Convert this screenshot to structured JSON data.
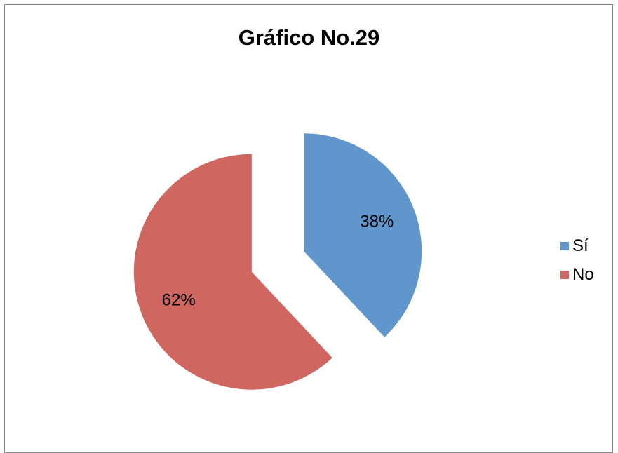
{
  "chart_data": {
    "type": "pie",
    "title": "Gráfico No.29",
    "categories": [
      "Sí",
      "No"
    ],
    "values": [
      38,
      62
    ],
    "data_labels": [
      "38%",
      "62%"
    ],
    "colors": [
      "#6096CB",
      "#CF6660"
    ],
    "exploded": true,
    "legend_position": "right"
  }
}
